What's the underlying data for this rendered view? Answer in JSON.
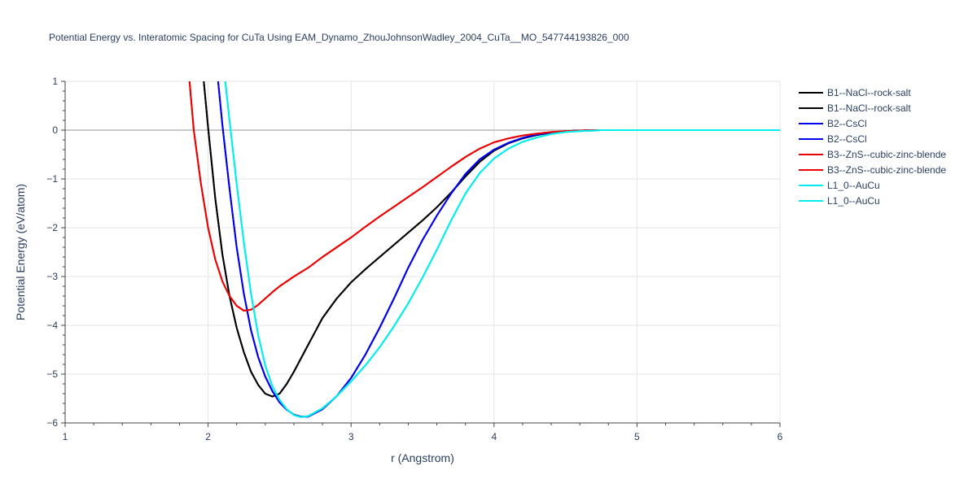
{
  "chart_data": {
    "type": "line",
    "title": "Potential Energy vs. Interatomic Spacing for CuTa Using EAM_Dynamo_ZhouJohnsonWadley_2004_CuTa__MO_547744193826_000",
    "xlabel": "r (Angstrom)",
    "ylabel": "Potential Energy (eV/atom)",
    "xlim": [
      1,
      6
    ],
    "ylim": [
      -6,
      1
    ],
    "xticks": [
      1,
      2,
      3,
      4,
      5,
      6
    ],
    "yticks": [
      1,
      0,
      -1,
      -2,
      -3,
      -4,
      -5,
      -6
    ],
    "ytick_labels": [
      "1",
      "0",
      "−1",
      "−2",
      "−3",
      "−4",
      "−5",
      "−6"
    ],
    "grid": true,
    "legend_position": "right",
    "series": [
      {
        "name": "B1--NaCl--rock-salt",
        "color": "#000000",
        "x": [
          1.97,
          2.0,
          2.05,
          2.1,
          2.15,
          2.2,
          2.25,
          2.3,
          2.35,
          2.4,
          2.45,
          2.5,
          2.55,
          2.6,
          2.7,
          2.8,
          2.9,
          3.0,
          3.1,
          3.2,
          3.3,
          3.4,
          3.5,
          3.6,
          3.7,
          3.8,
          3.9,
          4.0,
          4.1,
          4.2,
          4.3,
          4.4,
          4.5,
          4.6,
          4.7,
          4.75,
          5.0,
          6.0
        ],
        "y": [
          1,
          0.05,
          -1.4,
          -2.55,
          -3.4,
          -4.05,
          -4.55,
          -4.95,
          -5.22,
          -5.4,
          -5.46,
          -5.4,
          -5.2,
          -4.95,
          -4.4,
          -3.85,
          -3.45,
          -3.12,
          -2.85,
          -2.6,
          -2.35,
          -2.1,
          -1.85,
          -1.58,
          -1.28,
          -0.95,
          -0.65,
          -0.42,
          -0.27,
          -0.17,
          -0.1,
          -0.05,
          -0.02,
          -0.01,
          0,
          0,
          0,
          0
        ]
      },
      {
        "name": "B1--NaCl--rock-salt",
        "color": "#000000",
        "x": [
          1.97,
          2.0,
          2.05,
          2.1,
          2.15,
          2.2,
          2.25,
          2.3,
          2.35,
          2.4,
          2.45,
          2.5,
          2.55,
          2.6,
          2.7,
          2.8,
          2.9,
          3.0,
          3.1,
          3.2,
          3.3,
          3.4,
          3.5,
          3.6,
          3.7,
          3.8,
          3.9,
          4.0,
          4.1,
          4.2,
          4.3,
          4.4,
          4.5,
          4.6,
          4.7,
          4.75,
          5.0,
          6.0
        ],
        "y": [
          1,
          0.05,
          -1.4,
          -2.55,
          -3.4,
          -4.05,
          -4.55,
          -4.95,
          -5.22,
          -5.4,
          -5.46,
          -5.4,
          -5.2,
          -4.95,
          -4.4,
          -3.85,
          -3.45,
          -3.12,
          -2.85,
          -2.6,
          -2.35,
          -2.1,
          -1.85,
          -1.58,
          -1.28,
          -0.95,
          -0.65,
          -0.42,
          -0.27,
          -0.17,
          -0.1,
          -0.05,
          -0.02,
          -0.01,
          0,
          0,
          0,
          0
        ]
      },
      {
        "name": "B2--CsCl",
        "color": "#0000ee",
        "x": [
          2.07,
          2.1,
          2.15,
          2.2,
          2.25,
          2.3,
          2.35,
          2.4,
          2.45,
          2.5,
          2.55,
          2.6,
          2.65,
          2.7,
          2.8,
          2.9,
          3.0,
          3.1,
          3.2,
          3.3,
          3.4,
          3.5,
          3.6,
          3.7,
          3.8,
          3.9,
          4.0,
          4.1,
          4.2,
          4.3,
          4.4,
          4.5,
          4.6,
          4.7,
          4.75,
          5.0,
          6.0
        ],
        "y": [
          1,
          0.1,
          -1.2,
          -2.4,
          -3.35,
          -4.1,
          -4.65,
          -5.05,
          -5.35,
          -5.58,
          -5.73,
          -5.83,
          -5.87,
          -5.87,
          -5.72,
          -5.45,
          -5.08,
          -4.6,
          -4.05,
          -3.45,
          -2.82,
          -2.25,
          -1.75,
          -1.3,
          -0.9,
          -0.6,
          -0.4,
          -0.26,
          -0.16,
          -0.09,
          -0.05,
          -0.02,
          -0.01,
          0,
          0,
          0,
          0
        ]
      },
      {
        "name": "B2--CsCl",
        "color": "#0000ee",
        "x": [
          2.07,
          2.1,
          2.15,
          2.2,
          2.25,
          2.3,
          2.35,
          2.4,
          2.45,
          2.5,
          2.55,
          2.6,
          2.65,
          2.7,
          2.8,
          2.9,
          3.0,
          3.1,
          3.2,
          3.3,
          3.4,
          3.5,
          3.6,
          3.7,
          3.8,
          3.9,
          4.0,
          4.1,
          4.2,
          4.3,
          4.4,
          4.5,
          4.6,
          4.7,
          4.75,
          5.0,
          6.0
        ],
        "y": [
          1,
          0.1,
          -1.2,
          -2.4,
          -3.35,
          -4.1,
          -4.65,
          -5.05,
          -5.35,
          -5.58,
          -5.73,
          -5.83,
          -5.87,
          -5.87,
          -5.72,
          -5.45,
          -5.08,
          -4.6,
          -4.05,
          -3.45,
          -2.82,
          -2.25,
          -1.75,
          -1.3,
          -0.9,
          -0.6,
          -0.4,
          -0.26,
          -0.16,
          -0.09,
          -0.05,
          -0.02,
          -0.01,
          0,
          0,
          0,
          0
        ]
      },
      {
        "name": "B3--ZnS--cubic-zinc-blende",
        "color": "#ee0000",
        "x": [
          1.87,
          1.9,
          1.95,
          2.0,
          2.05,
          2.1,
          2.15,
          2.2,
          2.25,
          2.3,
          2.35,
          2.4,
          2.45,
          2.5,
          2.6,
          2.7,
          2.8,
          2.9,
          3.0,
          3.1,
          3.2,
          3.3,
          3.4,
          3.5,
          3.6,
          3.7,
          3.8,
          3.9,
          4.0,
          4.1,
          4.2,
          4.3,
          4.4,
          4.5,
          4.6,
          4.7,
          5.0,
          6.0
        ],
        "y": [
          1,
          0.0,
          -1.1,
          -2.0,
          -2.65,
          -3.1,
          -3.4,
          -3.6,
          -3.7,
          -3.68,
          -3.58,
          -3.45,
          -3.32,
          -3.2,
          -3.0,
          -2.82,
          -2.6,
          -2.4,
          -2.2,
          -1.98,
          -1.77,
          -1.57,
          -1.37,
          -1.17,
          -0.96,
          -0.75,
          -0.55,
          -0.38,
          -0.25,
          -0.17,
          -0.11,
          -0.07,
          -0.04,
          -0.02,
          -0.01,
          0,
          0,
          0
        ]
      },
      {
        "name": "B3--ZnS--cubic-zinc-blende",
        "color": "#ee0000",
        "x": [
          1.87,
          1.9,
          1.95,
          2.0,
          2.05,
          2.1,
          2.15,
          2.2,
          2.25,
          2.3,
          2.35,
          2.4,
          2.45,
          2.5,
          2.6,
          2.7,
          2.8,
          2.9,
          3.0,
          3.1,
          3.2,
          3.3,
          3.4,
          3.5,
          3.6,
          3.7,
          3.8,
          3.9,
          4.0,
          4.1,
          4.2,
          4.3,
          4.4,
          4.5,
          4.6,
          4.7,
          5.0,
          6.0
        ],
        "y": [
          1,
          0.0,
          -1.1,
          -2.0,
          -2.65,
          -3.1,
          -3.4,
          -3.6,
          -3.7,
          -3.68,
          -3.58,
          -3.45,
          -3.32,
          -3.2,
          -3.0,
          -2.82,
          -2.6,
          -2.4,
          -2.2,
          -1.98,
          -1.77,
          -1.57,
          -1.37,
          -1.17,
          -0.96,
          -0.75,
          -0.55,
          -0.38,
          -0.25,
          -0.17,
          -0.11,
          -0.07,
          -0.04,
          -0.02,
          -0.01,
          0,
          0,
          0
        ]
      },
      {
        "name": "L1_0--AuCu",
        "color": "#00eeee",
        "x": [
          2.12,
          2.15,
          2.2,
          2.25,
          2.3,
          2.35,
          2.4,
          2.45,
          2.5,
          2.55,
          2.6,
          2.65,
          2.7,
          2.8,
          2.9,
          3.0,
          3.1,
          3.2,
          3.3,
          3.4,
          3.5,
          3.6,
          3.7,
          3.8,
          3.9,
          4.0,
          4.1,
          4.2,
          4.3,
          4.4,
          4.5,
          4.6,
          4.7,
          4.75,
          5.0,
          6.0
        ],
        "y": [
          1,
          0.2,
          -1.1,
          -2.3,
          -3.35,
          -4.2,
          -4.82,
          -5.25,
          -5.53,
          -5.72,
          -5.84,
          -5.88,
          -5.86,
          -5.7,
          -5.45,
          -5.15,
          -4.82,
          -4.45,
          -4.02,
          -3.55,
          -3.02,
          -2.45,
          -1.85,
          -1.3,
          -0.88,
          -0.58,
          -0.38,
          -0.24,
          -0.15,
          -0.08,
          -0.04,
          -0.02,
          -0.01,
          0,
          0,
          0
        ]
      },
      {
        "name": "L1_0--AuCu",
        "color": "#00eeee",
        "x": [
          2.12,
          2.15,
          2.2,
          2.25,
          2.3,
          2.35,
          2.4,
          2.45,
          2.5,
          2.55,
          2.6,
          2.65,
          2.7,
          2.8,
          2.9,
          3.0,
          3.1,
          3.2,
          3.3,
          3.4,
          3.5,
          3.6,
          3.7,
          3.8,
          3.9,
          4.0,
          4.1,
          4.2,
          4.3,
          4.4,
          4.5,
          4.6,
          4.7,
          4.75,
          5.0,
          6.0
        ],
        "y": [
          1,
          0.2,
          -1.1,
          -2.3,
          -3.35,
          -4.2,
          -4.82,
          -5.25,
          -5.53,
          -5.72,
          -5.84,
          -5.88,
          -5.86,
          -5.7,
          -5.45,
          -5.15,
          -4.82,
          -4.45,
          -4.02,
          -3.55,
          -3.02,
          -2.45,
          -1.85,
          -1.3,
          -0.88,
          -0.58,
          -0.38,
          -0.24,
          -0.15,
          -0.08,
          -0.04,
          -0.02,
          -0.01,
          0,
          0,
          0
        ]
      }
    ]
  }
}
